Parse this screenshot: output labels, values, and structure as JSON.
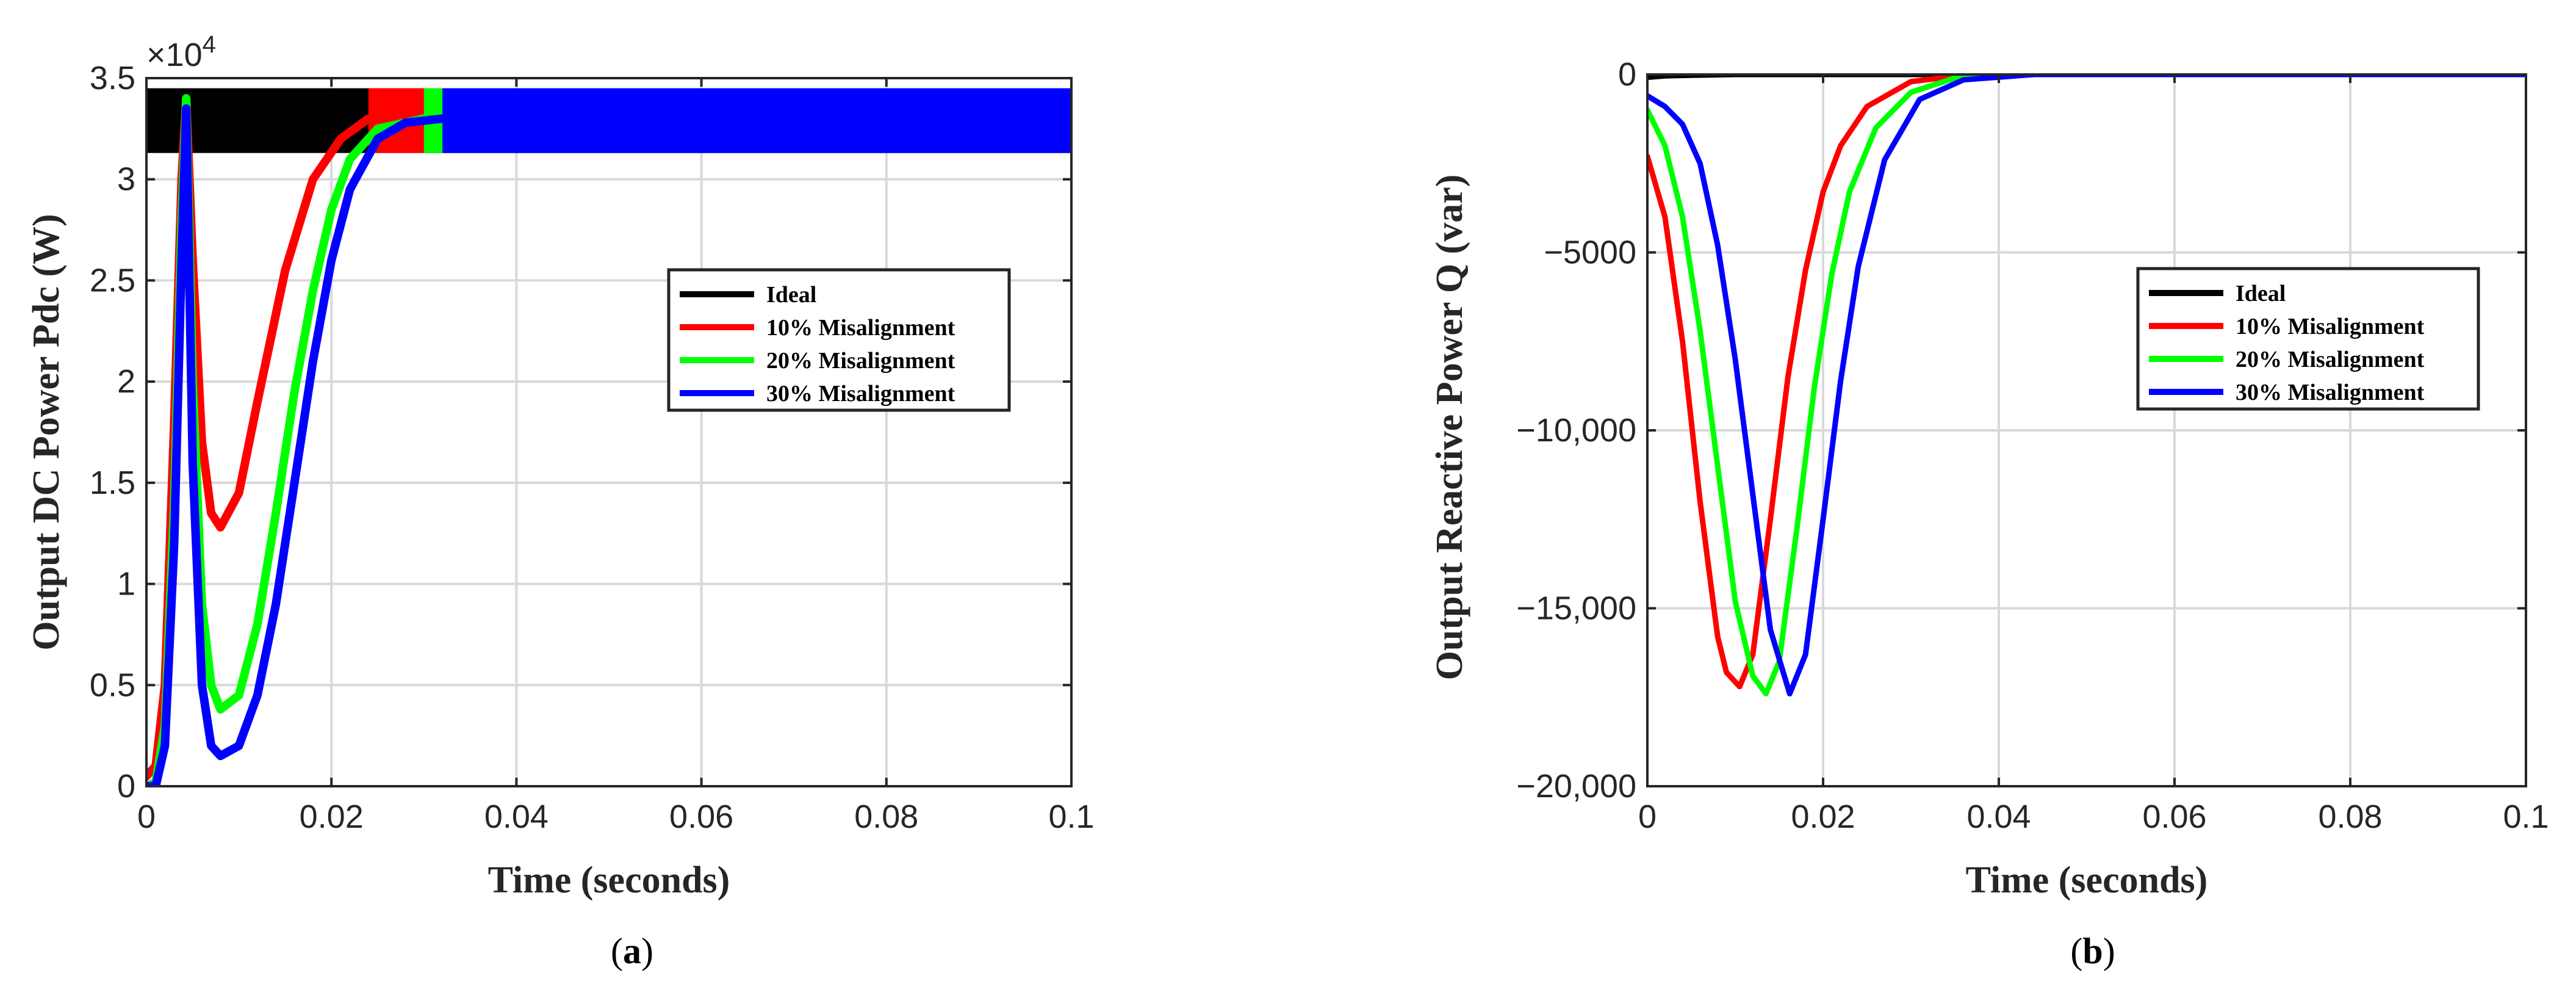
{
  "chart_data": [
    {
      "type": "line",
      "panel_label": "a",
      "xlabel": "Time (seconds)",
      "ylabel": "Output DC Power Pdc (W)",
      "y_exponent_label": "×10",
      "y_exponent_power": "4",
      "xlim": [
        0,
        0.1
      ],
      "ylim": [
        0,
        3.5
      ],
      "x_ticks": [
        0,
        0.02,
        0.04,
        0.06,
        0.08,
        0.1
      ],
      "x_tick_labels": [
        "0",
        "0.02",
        "0.04",
        "0.06",
        "0.08",
        "0.1"
      ],
      "y_ticks": [
        0,
        0.5,
        1,
        1.5,
        2,
        2.5,
        3,
        3.5
      ],
      "y_tick_labels": [
        "0",
        "0.5",
        "1",
        "1.5",
        "2",
        "2.5",
        "3",
        "3.5"
      ],
      "grid": true,
      "legend_position": "center-right",
      "series": [
        {
          "name": "Ideal",
          "color": "#000000",
          "ripple_band": [
            3.13,
            3.45
          ],
          "x": [
            0,
            0.0005,
            0.001,
            0.1
          ],
          "y": [
            3.25,
            3.4,
            3.3,
            3.3
          ]
        },
        {
          "name": "10% Misalignment",
          "color": "#ff0000",
          "x": [
            0,
            0.001,
            0.002,
            0.003,
            0.0038,
            0.0043,
            0.005,
            0.006,
            0.007,
            0.008,
            0.01,
            0.012,
            0.015,
            0.018,
            0.021,
            0.024,
            0.028,
            0.1
          ],
          "y": [
            0.05,
            0.1,
            0.5,
            1.8,
            3.0,
            3.4,
            2.6,
            1.7,
            1.35,
            1.28,
            1.45,
            1.9,
            2.55,
            3.0,
            3.2,
            3.3,
            3.3,
            3.3
          ],
          "ripple_band": [
            3.13,
            3.45
          ]
        },
        {
          "name": "20% Misalignment",
          "color": "#00ff00",
          "x": [
            0,
            0.001,
            0.002,
            0.003,
            0.0038,
            0.0043,
            0.005,
            0.006,
            0.007,
            0.008,
            0.01,
            0.012,
            0.014,
            0.016,
            0.018,
            0.02,
            0.022,
            0.025,
            0.03,
            0.1
          ],
          "y": [
            0.0,
            0.02,
            0.3,
            1.4,
            2.8,
            3.4,
            2.0,
            0.9,
            0.5,
            0.38,
            0.45,
            0.8,
            1.35,
            1.95,
            2.45,
            2.85,
            3.1,
            3.25,
            3.3,
            3.3
          ],
          "ripple_band": [
            3.13,
            3.45
          ]
        },
        {
          "name": "30% Misalignment",
          "color": "#0000ff",
          "x": [
            0,
            0.001,
            0.002,
            0.003,
            0.0038,
            0.0043,
            0.005,
            0.006,
            0.007,
            0.008,
            0.01,
            0.012,
            0.014,
            0.016,
            0.018,
            0.02,
            0.022,
            0.025,
            0.028,
            0.032,
            0.1
          ],
          "y": [
            0.0,
            0.0,
            0.2,
            1.2,
            2.6,
            3.35,
            1.6,
            0.5,
            0.2,
            0.15,
            0.2,
            0.45,
            0.9,
            1.5,
            2.1,
            2.6,
            2.95,
            3.2,
            3.28,
            3.3,
            3.3
          ],
          "ripple_band": [
            3.13,
            3.45
          ]
        }
      ]
    },
    {
      "type": "line",
      "panel_label": "b",
      "xlabel": "Time (seconds)",
      "ylabel": "Output Reactive Power Q (var)",
      "xlim": [
        0,
        0.1
      ],
      "ylim": [
        -20000,
        0
      ],
      "x_ticks": [
        0,
        0.02,
        0.04,
        0.06,
        0.08,
        0.1
      ],
      "x_tick_labels": [
        "0",
        "0.02",
        "0.04",
        "0.06",
        "0.08",
        "0.1"
      ],
      "y_ticks": [
        -20000,
        -15000,
        -10000,
        -5000,
        0
      ],
      "y_tick_labels": [
        "−20,000",
        "−15,000",
        "−10,000",
        "−5000",
        "0"
      ],
      "grid": true,
      "legend_position": "center-right",
      "series": [
        {
          "name": "Ideal",
          "color": "#000000",
          "x": [
            0,
            0.002,
            0.005,
            0.01,
            0.1
          ],
          "y": [
            -80,
            -40,
            -20,
            0,
            0
          ]
        },
        {
          "name": "10% Misalignment",
          "color": "#ff0000",
          "x": [
            0,
            0.002,
            0.004,
            0.006,
            0.008,
            0.009,
            0.0105,
            0.012,
            0.014,
            0.016,
            0.018,
            0.02,
            0.022,
            0.025,
            0.03,
            0.035,
            0.04,
            0.1
          ],
          "y": [
            -2300,
            -4000,
            -7500,
            -12000,
            -15800,
            -16800,
            -17200,
            -16300,
            -12500,
            -8500,
            -5500,
            -3300,
            -2000,
            -900,
            -200,
            -50,
            0,
            0
          ]
        },
        {
          "name": "20% Misalignment",
          "color": "#00ff00",
          "x": [
            0,
            0.002,
            0.004,
            0.006,
            0.008,
            0.01,
            0.012,
            0.0135,
            0.015,
            0.017,
            0.019,
            0.021,
            0.023,
            0.026,
            0.03,
            0.035,
            0.042,
            0.1
          ],
          "y": [
            -1000,
            -2000,
            -4000,
            -7200,
            -11000,
            -14800,
            -16900,
            -17400,
            -16500,
            -12800,
            -8800,
            -5600,
            -3300,
            -1500,
            -500,
            -100,
            0,
            0
          ]
        },
        {
          "name": "30% Misalignment",
          "color": "#0000ff",
          "x": [
            0,
            0.002,
            0.004,
            0.006,
            0.008,
            0.01,
            0.012,
            0.014,
            0.0162,
            0.018,
            0.02,
            0.022,
            0.024,
            0.027,
            0.031,
            0.036,
            0.044,
            0.1
          ],
          "y": [
            -600,
            -900,
            -1400,
            -2500,
            -4800,
            -8000,
            -11800,
            -15600,
            -17400,
            -16300,
            -12500,
            -8600,
            -5400,
            -2400,
            -700,
            -150,
            0,
            0
          ]
        }
      ]
    }
  ]
}
